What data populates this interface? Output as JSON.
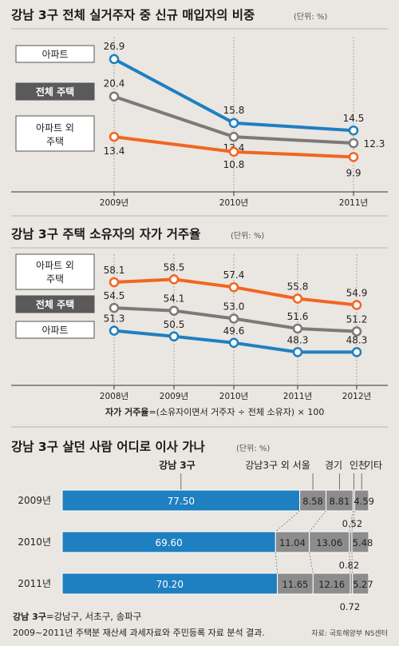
{
  "colors": {
    "apartment": "#1e7fc1",
    "all_housing": "#7a7a7a",
    "non_apartment": "#f26522",
    "bar_gangnam": "#1e7fc1",
    "bar_gray": "#8c8c8c",
    "background": "#eae6e1",
    "legend_dark_box": "#5a5a5a"
  },
  "chart_data": [
    {
      "type": "line",
      "title": "강남 3구 전체 실거주자 중 신규 매입자의 비중",
      "unit": "(단위: %)",
      "categories": [
        "2009년",
        "2010년",
        "2011년"
      ],
      "series": [
        {
          "name": "아파트",
          "color_key": "apartment",
          "values": [
            26.9,
            15.8,
            14.5
          ],
          "labels": [
            "26.9",
            "15.8",
            "14.5"
          ]
        },
        {
          "name": "전체 주택",
          "color_key": "all_housing",
          "values": [
            20.4,
            13.4,
            12.3
          ],
          "labels": [
            "20.4",
            "13.4",
            "12.3"
          ]
        },
        {
          "name": "아파트 외\n주택",
          "color_key": "non_apartment",
          "values": [
            13.4,
            10.8,
            9.9
          ],
          "labels": [
            "13.4",
            "10.8",
            "9.9"
          ]
        }
      ],
      "ylim": [
        8,
        28
      ]
    },
    {
      "type": "line",
      "title": "강남 3구 주택 소유자의 자가 거주율",
      "unit": "(단위: %)",
      "categories": [
        "2008년",
        "2009년",
        "2010년",
        "2011년",
        "2012년"
      ],
      "series": [
        {
          "name": "아파트 외\n주택",
          "color_key": "non_apartment",
          "values": [
            58.1,
            58.5,
            57.4,
            55.8,
            54.9
          ],
          "labels": [
            "58.1",
            "58.5",
            "57.4",
            "55.8",
            "54.9"
          ]
        },
        {
          "name": "전체 주택",
          "color_key": "all_housing",
          "values": [
            54.5,
            54.1,
            53.0,
            51.6,
            51.2
          ],
          "labels": [
            "54.5",
            "54.1",
            "53.0",
            "51.6",
            "51.2"
          ]
        },
        {
          "name": "아파트",
          "color_key": "apartment",
          "values": [
            51.3,
            50.5,
            49.6,
            48.3,
            48.3
          ],
          "labels": [
            "51.3",
            "50.5",
            "49.6",
            "48.3",
            "48.3"
          ]
        }
      ],
      "ylim": [
        47,
        60
      ],
      "footnote_bold": "자가 거주율",
      "footnote": "=(소유자이면서 거주자 ÷ 전체 소유자) × 100"
    },
    {
      "type": "bar",
      "orientation": "horizontal",
      "stacked": true,
      "title": "강남 3구 살던 사람 어디로 이사 가나",
      "unit": "(단위: %)",
      "categories": [
        "2009년",
        "2010년",
        "2011년"
      ],
      "series": [
        {
          "name": "강남 3구",
          "color_key": "bar_gangnam",
          "values": [
            77.5,
            69.6,
            70.2
          ],
          "labels": [
            "77.50",
            "69.60",
            "70.20"
          ]
        },
        {
          "name": "강남3구 외 서울",
          "color_key": "bar_gray",
          "values": [
            8.58,
            11.04,
            11.65
          ],
          "labels": [
            "8.58",
            "11.04",
            "11.65"
          ]
        },
        {
          "name": "경기",
          "color_key": "bar_gray",
          "values": [
            8.81,
            13.06,
            12.16
          ],
          "labels": [
            "8.81",
            "13.06",
            "12.16"
          ]
        },
        {
          "name": "인천",
          "color_key": "bar_gray",
          "values": [
            0.52,
            0.82,
            0.72
          ],
          "labels": [
            "0.52",
            "0.82",
            "0.72"
          ]
        },
        {
          "name": "기타",
          "color_key": "bar_gray",
          "values": [
            4.59,
            5.48,
            5.27
          ],
          "labels": [
            "4.59",
            "5.48",
            "5.27"
          ]
        }
      ],
      "xlim": [
        0,
        100
      ]
    }
  ],
  "footer": {
    "legend_bold": "강남 3구",
    "legend_text": "=강남구, 서초구, 송파구",
    "source_text": "2009~2011년 주택분 재산세 과세자료와 주민등록 자료 분석 결과.",
    "source_org": "자료: 국토해양부 NS센터"
  }
}
